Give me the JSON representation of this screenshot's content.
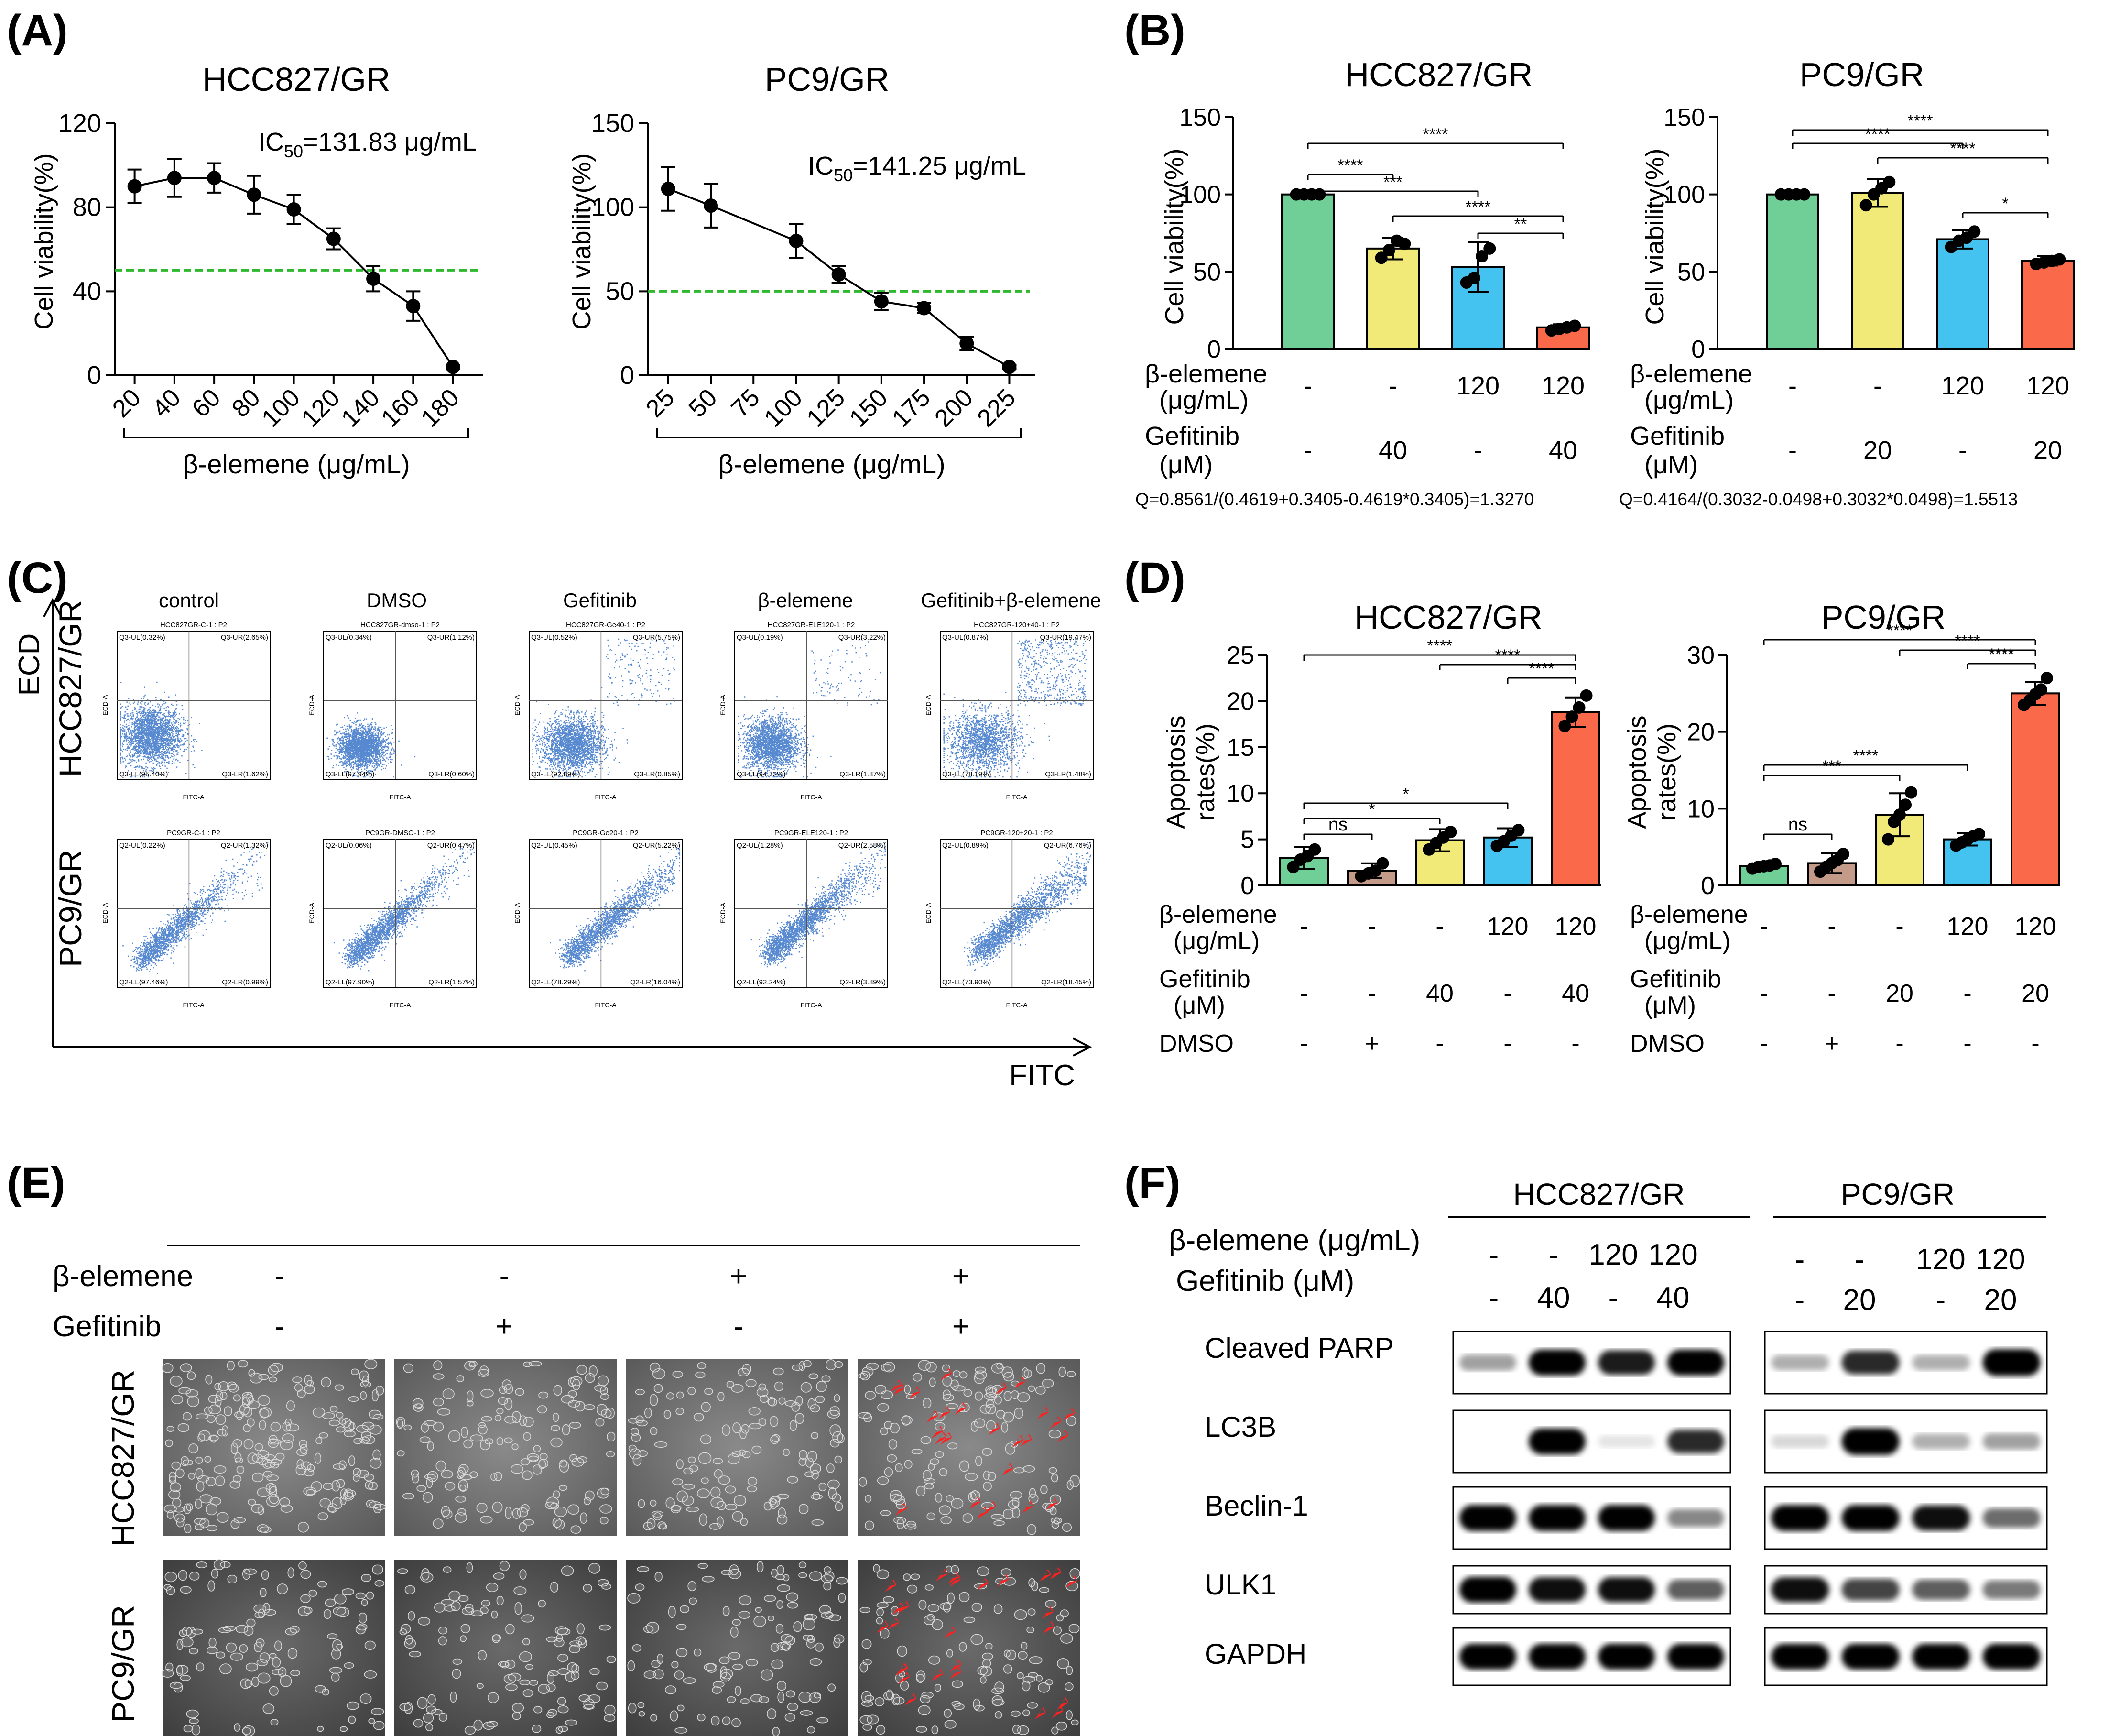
{
  "panel_labels": {
    "A": "(A)",
    "B": "(B)",
    "C": "(C)",
    "D": "(D)",
    "E": "(E)",
    "F": "(F)"
  },
  "colors": {
    "green": "#6fcf97",
    "yellow": "#f2ea78",
    "blue": "#44c2f0",
    "red": "#fa6a4a",
    "brown": "#c49a88",
    "dashed": "#2db82d",
    "arrow": "#ff2020",
    "flow": "#1f62c0"
  },
  "panelA": {
    "hcc": {
      "title": "HCC827/GR",
      "ylabel": "Cell viability(%)",
      "xlabel": "β-elemene (μg/mL)",
      "ic50_label": "IC",
      "ic50_sub": "50",
      "ic50_value": "=131.83 μg/mL"
    },
    "pc9": {
      "title": "PC9/GR",
      "ylabel": "Cell viability(%)",
      "xlabel": "β-elemene (μg/mL)",
      "ic50_label": "IC",
      "ic50_sub": "50",
      "ic50_value": "=141.25 μg/mL"
    }
  },
  "panelB": {
    "ylabel": "Cell viability(%)",
    "row1_label_a": "β-elemene",
    "row1_label_b": "(μg/mL)",
    "row2_label_a": "Gefitinib",
    "row2_label_b": "(μM)",
    "hcc": {
      "title": "HCC827/GR",
      "row1": [
        "-",
        "-",
        "120",
        "120"
      ],
      "row2": [
        "-",
        "40",
        "-",
        "40"
      ],
      "q": "Q=0.8561/(0.4619+0.3405-0.4619*0.3405)=1.3270"
    },
    "pc9": {
      "title": "PC9/GR",
      "row1": [
        "-",
        "-",
        "120",
        "120"
      ],
      "row2": [
        "-",
        "20",
        "-",
        "20"
      ],
      "q": "Q=0.4164/(0.3032-0.0498+0.3032*0.0498)=1.5513"
    }
  },
  "panelC": {
    "yaxis": "ECD",
    "xaxis": "FITC",
    "row_labels": [
      "HCC827/GR",
      "PC9/GR"
    ],
    "col_labels": [
      "control",
      "DMSO",
      "Gefitinib",
      "β-elemene",
      "Gefitinib+β-elemene"
    ],
    "axis_x": "FITC-A",
    "axis_y": "ECD-A",
    "plots": [
      [
        {
          "title": "HCC827GR-C-1 : P2",
          "ul": "Q3-UL(0.32%)",
          "ur": "Q3-UR(2.65%)",
          "ll": "Q3-LL(95.40%)",
          "lr": "Q3-LR(1.62%)"
        },
        {
          "title": "HCC827GR-dmso-1 : P2",
          "ul": "Q3-UL(0.34%)",
          "ur": "Q3-UR(1.12%)",
          "ll": "Q3-LL(97.94%)",
          "lr": "Q3-LR(0.60%)"
        },
        {
          "title": "HCC827GR-Ge40-1 : P2",
          "ul": "Q3-UL(0.52%)",
          "ur": "Q3-UR(5.75%)",
          "ll": "Q3-LL(92.89%)",
          "lr": "Q3-LR(0.85%)"
        },
        {
          "title": "HCC827GR-ELE120-1 : P2",
          "ul": "Q3-UL(0.19%)",
          "ur": "Q3-UR(3.22%)",
          "ll": "Q3-LL(94.72%)",
          "lr": "Q3-LR(1.87%)"
        },
        {
          "title": "HCC827GR-120+40-1 : P2",
          "ul": "Q3-UL(0.87%)",
          "ur": "Q3-UR(19.47%)",
          "ll": "Q3-LL(78.19%)",
          "lr": "Q3-LR(1.48%)"
        }
      ],
      [
        {
          "title": "PC9GR-C-1 : P2",
          "ul": "Q2-UL(0.22%)",
          "ur": "Q2-UR(1.32%)",
          "ll": "Q2-LL(97.46%)",
          "lr": "Q2-LR(0.99%)"
        },
        {
          "title": "PC9GR-DMSO-1 : P2",
          "ul": "Q2-UL(0.06%)",
          "ur": "Q2-UR(0.47%)",
          "ll": "Q2-LL(97.90%)",
          "lr": "Q2-LR(1.57%)"
        },
        {
          "title": "PC9GR-Ge20-1 : P2",
          "ul": "Q2-UL(0.45%)",
          "ur": "Q2-UR(5.22%)",
          "ll": "Q2-LL(78.29%)",
          "lr": "Q2-LR(16.04%)"
        },
        {
          "title": "PC9GR-ELE120-1 : P2",
          "ul": "Q2-UL(1.28%)",
          "ur": "Q2-UR(2.58%)",
          "ll": "Q2-LL(92.24%)",
          "lr": "Q2-LR(3.89%)"
        },
        {
          "title": "PC9GR-120+20-1 : P2",
          "ul": "Q2-UL(0.89%)",
          "ur": "Q2-UR(6.76%)",
          "ll": "Q2-LL(73.90%)",
          "lr": "Q2-LR(18.45%)"
        }
      ]
    ]
  },
  "panelD": {
    "ylabel_a": "Apoptosis",
    "ylabel_b": "rates(%)",
    "row1_label_a": "β-elemene",
    "row1_label_b": "(μg/mL)",
    "row2_label_a": "Gefitinib",
    "row2_label_b": "(μM)",
    "row3_label": "DMSO",
    "hcc": {
      "title": "HCC827/GR",
      "row1": [
        "-",
        "-",
        "-",
        "120",
        "120"
      ],
      "row2": [
        "-",
        "-",
        "40",
        "-",
        "40"
      ],
      "row3": [
        "-",
        "+",
        "-",
        "-",
        "-"
      ]
    },
    "pc9": {
      "title": "PC9/GR",
      "row1": [
        "-",
        "-",
        "-",
        "120",
        "120"
      ],
      "row2": [
        "-",
        "-",
        "20",
        "-",
        "20"
      ],
      "row3": [
        "-",
        "+",
        "-",
        "-",
        "-"
      ]
    }
  },
  "panelE": {
    "row1_label": "β-elemene",
    "row2_label": "Gefitinib",
    "row1": [
      "-",
      "-",
      "+",
      "+"
    ],
    "row2": [
      "-",
      "+",
      "-",
      "+"
    ],
    "cell_lines": [
      "HCC827/GR",
      "PC9/GR"
    ]
  },
  "panelF": {
    "groups": [
      "HCC827/GR",
      "PC9/GR"
    ],
    "row1_label": "β-elemene (μg/mL)",
    "row2_label": "Gefitinib (μM)",
    "hcc_row1": [
      "-",
      "-",
      "120",
      "120"
    ],
    "hcc_row2": [
      "-",
      "40",
      "-",
      "40"
    ],
    "pc9_row1": [
      "-",
      "-",
      "120",
      "120"
    ],
    "pc9_row2": [
      "-",
      "20",
      "-",
      "20"
    ],
    "proteins": [
      "Cleaved PARP",
      "LC3B",
      "Beclin-1",
      "ULK1",
      "GAPDH"
    ],
    "intensity": {
      "hcc": [
        [
          0.35,
          0.95,
          0.85,
          0.95
        ],
        [
          0.0,
          0.95,
          0.1,
          0.8
        ],
        [
          0.95,
          0.95,
          0.95,
          0.45
        ],
        [
          0.95,
          0.9,
          0.9,
          0.6
        ],
        [
          0.95,
          0.95,
          0.95,
          0.95
        ]
      ],
      "pc9": [
        [
          0.3,
          0.8,
          0.3,
          1.0
        ],
        [
          0.15,
          1.0,
          0.3,
          0.35
        ],
        [
          0.95,
          0.95,
          0.9,
          0.55
        ],
        [
          0.9,
          0.7,
          0.6,
          0.5
        ],
        [
          0.95,
          0.95,
          0.95,
          0.95
        ]
      ]
    }
  },
  "chart_data": [
    {
      "type": "line",
      "title": "HCC827/GR",
      "xlabel": "β-elemene (μg/mL)",
      "ylabel": "Cell viability(%)",
      "x": [
        20,
        40,
        60,
        80,
        100,
        120,
        140,
        160,
        180
      ],
      "y": [
        90,
        94,
        94,
        86,
        79,
        65,
        46,
        33,
        4
      ],
      "err": [
        8,
        9,
        7,
        9,
        7,
        5,
        6,
        7,
        1
      ],
      "threshold": 50,
      "ylim": [
        0,
        120
      ],
      "yticks": [
        0,
        40,
        80,
        120
      ],
      "annotation": "IC50=131.83 μg/mL"
    },
    {
      "type": "line",
      "title": "PC9/GR",
      "xlabel": "β-elemene (μg/mL)",
      "ylabel": "Cell viability(%)",
      "x": [
        25,
        50,
        100,
        125,
        150,
        175,
        200,
        225
      ],
      "y": [
        111,
        101,
        80,
        60,
        44,
        40,
        19,
        5
      ],
      "err": [
        13,
        13,
        10,
        5,
        5,
        3,
        4,
        1
      ],
      "threshold": 50,
      "ylim": [
        0,
        150
      ],
      "yticks": [
        0,
        50,
        100,
        150
      ],
      "annotation": "IC50=141.25 μg/mL"
    },
    {
      "type": "bar",
      "title": "HCC827/GR",
      "ylabel": "Cell viability(%)",
      "categories": [
        "control",
        "Gefitinib 40",
        "β-elemene 120",
        "β-elemene 120 + Gefitinib 40"
      ],
      "values": [
        100,
        65,
        53,
        14
      ],
      "err": [
        1,
        7,
        16,
        2
      ],
      "points": [
        [
          100,
          100,
          100,
          100
        ],
        [
          59,
          64,
          70,
          68
        ],
        [
          43,
          46,
          60,
          65
        ],
        [
          12,
          13,
          14,
          15
        ]
      ],
      "ylim": [
        0,
        150
      ],
      "yticks": [
        0,
        50,
        100,
        150
      ],
      "sig": [
        [
          "0",
          "1",
          "****"
        ],
        [
          "0",
          "2",
          "***"
        ],
        [
          "0",
          "3",
          "****"
        ],
        [
          "1",
          "3",
          "****"
        ],
        [
          "2",
          "3",
          "**"
        ]
      ]
    },
    {
      "type": "bar",
      "title": "PC9/GR",
      "ylabel": "Cell viability(%)",
      "categories": [
        "control",
        "Gefitinib 20",
        "β-elemene 120",
        "β-elemene 120 + Gefitinib 20"
      ],
      "values": [
        100,
        101,
        71,
        57
      ],
      "err": [
        0,
        9,
        6,
        3
      ],
      "points": [
        [
          100,
          100,
          100,
          100
        ],
        [
          93,
          100,
          104,
          108
        ],
        [
          66,
          70,
          72,
          76
        ],
        [
          55,
          56,
          57,
          58
        ]
      ],
      "ylim": [
        0,
        150
      ],
      "yticks": [
        0,
        50,
        100,
        150
      ],
      "sig": [
        [
          "0",
          "2",
          "****"
        ],
        [
          "0",
          "3",
          "****"
        ],
        [
          "1",
          "3",
          "****"
        ],
        [
          "2",
          "3",
          "*"
        ]
      ]
    },
    {
      "type": "bar",
      "title": "HCC827/GR",
      "ylabel": "Apoptosis rates(%)",
      "categories": [
        "control",
        "DMSO",
        "Gefitinib 40",
        "β-elemene 120",
        "β-elemene 120 + Gefitinib 40"
      ],
      "values": [
        3.0,
        1.6,
        4.9,
        5.2,
        18.8
      ],
      "err": [
        1.2,
        0.8,
        1.2,
        1.0,
        1.6
      ],
      "points": [
        [
          2.0,
          2.8,
          3.2,
          3.9
        ],
        [
          1.0,
          1.3,
          1.6,
          2.4
        ],
        [
          3.9,
          4.6,
          5.2,
          5.8
        ],
        [
          4.3,
          4.8,
          5.4,
          6.0
        ],
        [
          17.3,
          18.3,
          19.3,
          20.6
        ]
      ],
      "ylim": [
        0,
        25
      ],
      "yticks": [
        0,
        5,
        10,
        15,
        20,
        25
      ],
      "sig": [
        [
          "0",
          "1",
          "ns"
        ],
        [
          "0",
          "2",
          "*"
        ],
        [
          "0",
          "3",
          "*"
        ],
        [
          "0",
          "4",
          "****"
        ],
        [
          "2",
          "4",
          "****"
        ],
        [
          "3",
          "4",
          "****"
        ]
      ]
    },
    {
      "type": "bar",
      "title": "PC9/GR",
      "ylabel": "Apoptosis rates(%)",
      "categories": [
        "control",
        "DMSO",
        "Gefitinib 20",
        "β-elemene 120",
        "β-elemene 120 + Gefitinib 20"
      ],
      "values": [
        2.5,
        2.9,
        9.2,
        6.0,
        25.0
      ],
      "err": [
        0.3,
        1.3,
        2.8,
        0.8,
        1.5
      ],
      "points": [
        [
          2.2,
          2.4,
          2.5,
          2.6,
          2.8
        ],
        [
          1.8,
          2.4,
          2.9,
          3.3,
          4.1
        ],
        [
          6.0,
          8.3,
          9.2,
          10.5,
          12.1
        ],
        [
          5.2,
          5.6,
          6.0,
          6.4,
          6.7
        ],
        [
          23.5,
          24.1,
          24.9,
          25.5,
          27.0
        ]
      ],
      "ylim": [
        0,
        30
      ],
      "yticks": [
        0,
        10,
        20,
        30
      ],
      "sig": [
        [
          "0",
          "1",
          "ns"
        ],
        [
          "0",
          "2",
          "***"
        ],
        [
          "0",
          "3",
          "****"
        ],
        [
          "0",
          "4",
          "****"
        ],
        [
          "2",
          "4",
          "****"
        ],
        [
          "3",
          "4",
          "****"
        ]
      ]
    }
  ]
}
